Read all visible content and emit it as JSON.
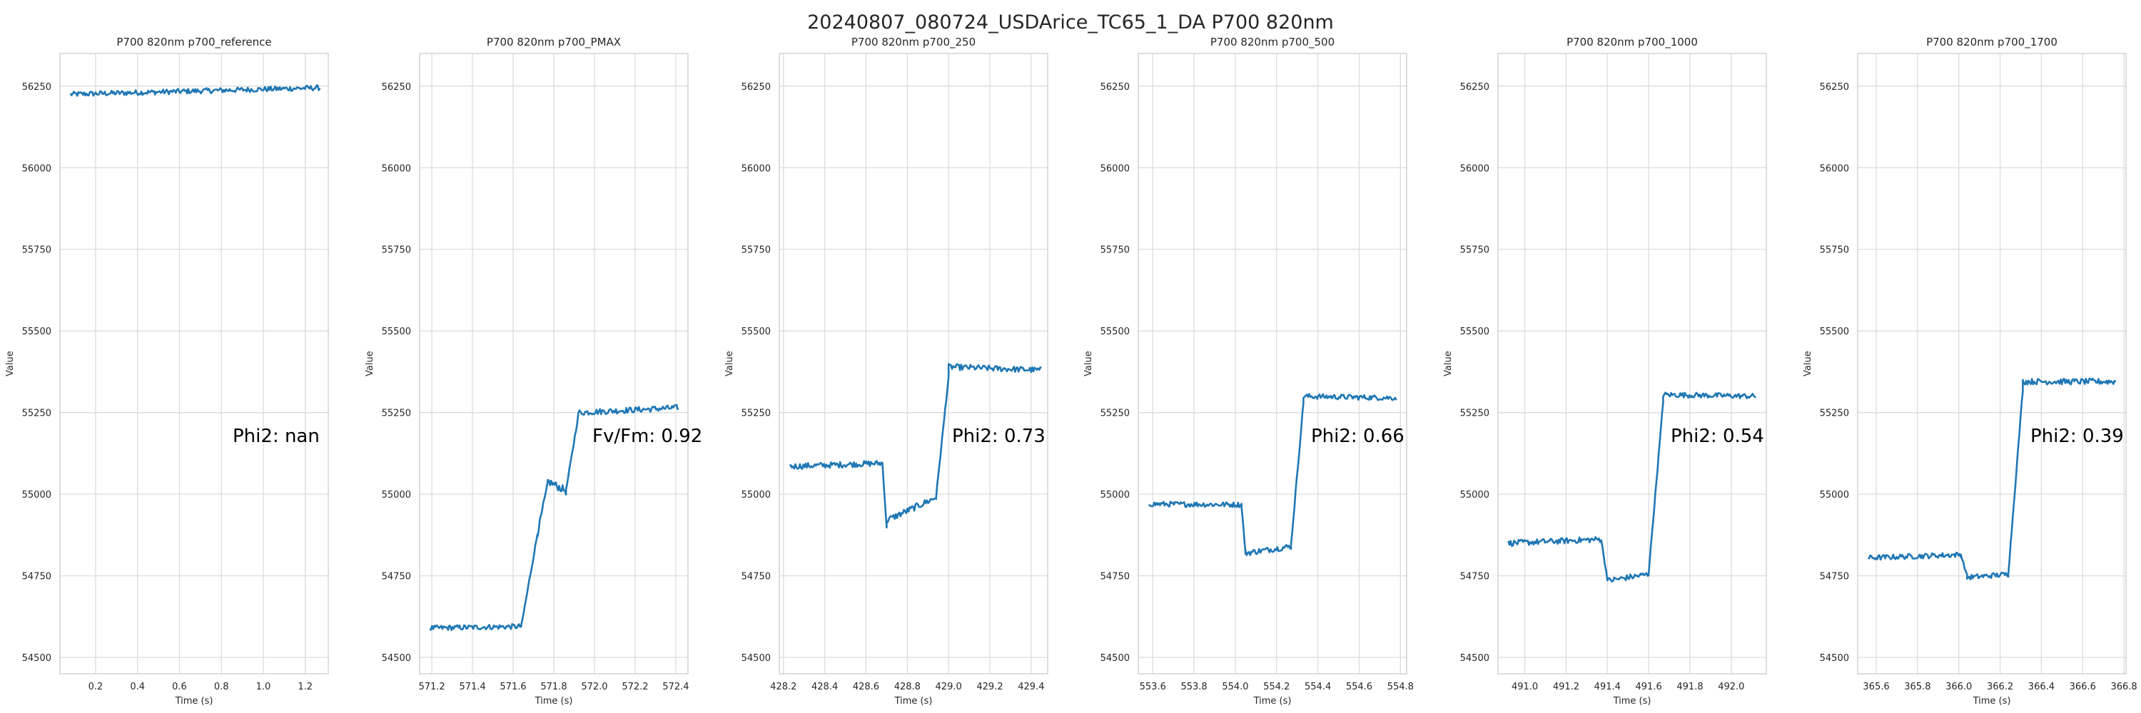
{
  "figure": {
    "suptitle": "20240807_080724_USDArice_TC65_1_DA P700 820nm"
  },
  "style": {
    "line_color": "#1f77b4",
    "grid_color": "#dcdcdc",
    "spine_color": "#cccccc",
    "text_color": "#262626"
  },
  "shared": {
    "ylabel": "Value",
    "xlabel": "Time (s)",
    "ylim": [
      54450,
      56350
    ],
    "yticks": [
      54500,
      54750,
      55000,
      55250,
      55500,
      55750,
      56000,
      56250
    ]
  },
  "chart_data": [
    {
      "type": "line",
      "title": "P700 820nm p700_reference",
      "xlabel": "Time (s)",
      "ylabel": "Value",
      "xlim": [
        0.03,
        1.31
      ],
      "ylim": [
        54450,
        56350
      ],
      "xticks": [
        "0.2",
        "0.4",
        "0.6",
        "0.8",
        "1.0",
        "1.2"
      ],
      "annotation": "Phi2: nan",
      "series": [
        {
          "segments": [
            {
              "x0": 0.08,
              "x1": 1.27,
              "y0": 56225,
              "y1": 56245,
              "noise": 8
            }
          ]
        }
      ]
    },
    {
      "type": "line",
      "title": "P700 820nm p700_PMAX",
      "xlabel": "Time (s)",
      "ylabel": "Value",
      "xlim": [
        571.14,
        572.46
      ],
      "ylim": [
        54450,
        56350
      ],
      "xticks": [
        "571.2",
        "571.4",
        "571.6",
        "571.8",
        "572.0",
        "572.2",
        "572.4"
      ],
      "annotation": "Fv/Fm: 0.92",
      "series": [
        {
          "segments": [
            {
              "x0": 571.19,
              "x1": 571.64,
              "y0": 54590,
              "y1": 54595,
              "noise": 8
            },
            {
              "x0": 571.64,
              "x1": 571.72,
              "y0": 54595,
              "y1": 54880,
              "noise": 6
            },
            {
              "x0": 571.72,
              "x1": 571.77,
              "y0": 54880,
              "y1": 55030,
              "noise": 10
            },
            {
              "x0": 571.77,
              "x1": 571.86,
              "y0": 55040,
              "y1": 55010,
              "noise": 12
            },
            {
              "x0": 571.86,
              "x1": 571.92,
              "y0": 55010,
              "y1": 55240,
              "noise": 6
            },
            {
              "x0": 571.92,
              "x1": 572.41,
              "y0": 55250,
              "y1": 55265,
              "noise": 9
            }
          ]
        }
      ]
    },
    {
      "type": "line",
      "title": "P700 820nm p700_250",
      "xlabel": "Time (s)",
      "ylabel": "Value",
      "xlim": [
        428.18,
        429.48
      ],
      "ylim": [
        54450,
        56350
      ],
      "xticks": [
        "428.2",
        "428.4",
        "428.6",
        "428.8",
        "429.0",
        "429.2",
        "429.4"
      ],
      "annotation": "Phi2: 0.73",
      "series": [
        {
          "segments": [
            {
              "x0": 428.23,
              "x1": 428.68,
              "y0": 55085,
              "y1": 55095,
              "noise": 9
            },
            {
              "x0": 428.68,
              "x1": 428.7,
              "y0": 55090,
              "y1": 54895,
              "noise": 4
            },
            {
              "x0": 428.7,
              "x1": 428.94,
              "y0": 54920,
              "y1": 54990,
              "noise": 10
            },
            {
              "x0": 428.94,
              "x1": 429.0,
              "y0": 54995,
              "y1": 55360,
              "noise": 6
            },
            {
              "x0": 429.0,
              "x1": 429.45,
              "y0": 55390,
              "y1": 55380,
              "noise": 9
            }
          ]
        }
      ]
    },
    {
      "type": "line",
      "title": "P700 820nm p700_500",
      "xlabel": "Time (s)",
      "ylabel": "Value",
      "xlim": [
        553.53,
        554.83
      ],
      "ylim": [
        54450,
        56350
      ],
      "xticks": [
        "553.6",
        "553.8",
        "554.0",
        "554.2",
        "554.4",
        "554.6",
        "554.8"
      ],
      "annotation": "Phi2: 0.66",
      "series": [
        {
          "segments": [
            {
              "x0": 553.58,
              "x1": 554.03,
              "y0": 54970,
              "y1": 54968,
              "noise": 8
            },
            {
              "x0": 554.03,
              "x1": 554.05,
              "y0": 54965,
              "y1": 54815,
              "noise": 4
            },
            {
              "x0": 554.05,
              "x1": 554.27,
              "y0": 54820,
              "y1": 54840,
              "noise": 9
            },
            {
              "x0": 554.27,
              "x1": 554.33,
              "y0": 54845,
              "y1": 55280,
              "noise": 6
            },
            {
              "x0": 554.33,
              "x1": 554.78,
              "y0": 55300,
              "y1": 55295,
              "noise": 8
            }
          ]
        }
      ]
    },
    {
      "type": "line",
      "title": "P700 820nm p700_1000",
      "xlabel": "Time (s)",
      "ylabel": "Value",
      "xlim": [
        490.87,
        492.17
      ],
      "ylim": [
        54450,
        56350
      ],
      "xticks": [
        "491.0",
        "491.2",
        "491.4",
        "491.6",
        "491.8",
        "492.0"
      ],
      "annotation": "Phi2: 0.54",
      "series": [
        {
          "segments": [
            {
              "x0": 490.92,
              "x1": 491.37,
              "y0": 54850,
              "y1": 54862,
              "noise": 9
            },
            {
              "x0": 491.37,
              "x1": 491.4,
              "y0": 54860,
              "y1": 54740,
              "noise": 4
            },
            {
              "x0": 491.4,
              "x1": 491.6,
              "y0": 54735,
              "y1": 54755,
              "noise": 9
            },
            {
              "x0": 491.6,
              "x1": 491.67,
              "y0": 54760,
              "y1": 55280,
              "noise": 6
            },
            {
              "x0": 491.67,
              "x1": 492.12,
              "y0": 55305,
              "y1": 55300,
              "noise": 8
            }
          ]
        }
      ]
    },
    {
      "type": "line",
      "title": "P700 820nm p700_1700",
      "xlabel": "Time (s)",
      "ylabel": "Value",
      "xlim": [
        365.51,
        366.81
      ],
      "ylim": [
        54450,
        56350
      ],
      "xticks": [
        "365.6",
        "365.8",
        "366.0",
        "366.2",
        "366.4",
        "366.6",
        "366.8"
      ],
      "annotation": "Phi2: 0.39",
      "series": [
        {
          "segments": [
            {
              "x0": 365.56,
              "x1": 366.01,
              "y0": 54805,
              "y1": 54815,
              "noise": 8
            },
            {
              "x0": 366.01,
              "x1": 366.04,
              "y0": 54815,
              "y1": 54750,
              "noise": 4
            },
            {
              "x0": 366.04,
              "x1": 366.24,
              "y0": 54745,
              "y1": 54755,
              "noise": 8
            },
            {
              "x0": 366.24,
              "x1": 366.31,
              "y0": 54760,
              "y1": 55320,
              "noise": 6
            },
            {
              "x0": 366.31,
              "x1": 366.76,
              "y0": 55345,
              "y1": 55345,
              "noise": 9
            }
          ]
        }
      ]
    }
  ]
}
